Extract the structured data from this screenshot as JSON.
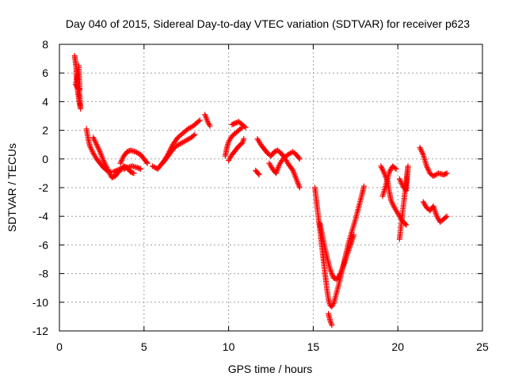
{
  "chart_data": {
    "type": "scatter",
    "title": "Day 040 of 2015, Sidereal Day-to-day VTEC variation (SDTVAR) for receiver p623",
    "xlabel": "GPS time / hours",
    "ylabel": "SDTVAR / TECUs",
    "xlim": [
      0,
      25
    ],
    "ylim": [
      -12,
      8
    ],
    "xticks": [
      0,
      5,
      10,
      15,
      20,
      25
    ],
    "yticks": [
      -12,
      -10,
      -8,
      -6,
      -4,
      -2,
      0,
      2,
      4,
      6,
      8
    ],
    "grid": true,
    "marker": "+",
    "color": "#ff0000",
    "series": [
      {
        "segments": [
          [
            [
              0.9,
              7.2
            ],
            [
              0.95,
              6.8
            ],
            [
              1.0,
              6.3
            ],
            [
              1.0,
              5.8
            ],
            [
              1.05,
              5.5
            ],
            [
              1.05,
              5.0
            ],
            [
              1.1,
              4.6
            ],
            [
              1.15,
              4.2
            ],
            [
              1.2,
              3.8
            ],
            [
              1.25,
              3.5
            ],
            [
              1.1,
              6.0
            ],
            [
              0.95,
              5.2
            ],
            [
              1.2,
              4.8
            ],
            [
              1.15,
              6.5
            ]
          ],
          [
            [
              1.6,
              2.1
            ],
            [
              1.7,
              1.4
            ],
            [
              1.8,
              0.9
            ],
            [
              2.0,
              0.4
            ],
            [
              2.2,
              0.0
            ],
            [
              2.4,
              -0.3
            ],
            [
              2.6,
              -0.6
            ],
            [
              2.8,
              -0.8
            ],
            [
              3.0,
              -0.9
            ],
            [
              3.2,
              -0.9
            ],
            [
              3.4,
              -0.8
            ],
            [
              3.6,
              -0.7
            ],
            [
              3.8,
              -0.7
            ],
            [
              4.0,
              -0.6
            ],
            [
              4.3,
              -0.5
            ],
            [
              4.6,
              -0.6
            ],
            [
              4.8,
              -0.7
            ]
          ],
          [
            [
              2.0,
              1.5
            ],
            [
              2.2,
              1.0
            ],
            [
              2.4,
              0.5
            ],
            [
              2.6,
              -0.1
            ],
            [
              2.8,
              -0.6
            ],
            [
              3.0,
              -1.1
            ],
            [
              3.1,
              -1.3
            ],
            [
              3.3,
              -1.2
            ],
            [
              3.5,
              -0.9
            ],
            [
              3.8,
              -0.5
            ],
            [
              4.0,
              -0.6
            ],
            [
              4.2,
              -0.9
            ],
            [
              4.4,
              -1.0
            ]
          ],
          [
            [
              3.6,
              -0.3
            ],
            [
              3.8,
              0.2
            ],
            [
              4.0,
              0.5
            ],
            [
              4.2,
              0.6
            ],
            [
              4.5,
              0.5
            ],
            [
              4.8,
              0.3
            ],
            [
              5.0,
              0.0
            ],
            [
              5.2,
              -0.3
            ]
          ],
          [
            [
              5.5,
              -0.5
            ],
            [
              5.8,
              -0.7
            ],
            [
              6.0,
              -0.4
            ],
            [
              6.3,
              0.0
            ],
            [
              6.6,
              0.5
            ],
            [
              6.9,
              0.9
            ],
            [
              7.2,
              1.1
            ],
            [
              7.5,
              1.3
            ],
            [
              7.8,
              1.5
            ],
            [
              8.0,
              1.7
            ]
          ],
          [
            [
              6.1,
              -0.3
            ],
            [
              6.4,
              0.3
            ],
            [
              6.7,
              1.0
            ],
            [
              7.0,
              1.5
            ],
            [
              7.3,
              1.8
            ],
            [
              7.6,
              2.1
            ],
            [
              7.9,
              2.3
            ],
            [
              8.1,
              2.5
            ],
            [
              8.3,
              2.7
            ]
          ],
          [
            [
              8.6,
              3.1
            ],
            [
              8.7,
              2.8
            ],
            [
              8.8,
              2.5
            ],
            [
              8.9,
              2.3
            ]
          ],
          [
            [
              9.8,
              0.2
            ],
            [
              9.9,
              0.8
            ],
            [
              10.0,
              1.2
            ],
            [
              10.2,
              1.6
            ],
            [
              10.4,
              1.8
            ],
            [
              10.6,
              2.0
            ],
            [
              10.8,
              2.2
            ]
          ],
          [
            [
              10.0,
              -0.1
            ],
            [
              10.2,
              0.3
            ],
            [
              10.4,
              0.6
            ],
            [
              10.6,
              0.9
            ],
            [
              10.8,
              1.1
            ],
            [
              10.9,
              1.4
            ]
          ],
          [
            [
              10.2,
              2.4
            ],
            [
              10.4,
              2.5
            ],
            [
              10.6,
              2.6
            ],
            [
              10.8,
              2.4
            ],
            [
              11.0,
              2.2
            ]
          ],
          [
            [
              11.6,
              -0.8
            ],
            [
              11.8,
              -1.1
            ]
          ],
          [
            [
              11.7,
              1.4
            ],
            [
              11.9,
              1.0
            ],
            [
              12.1,
              0.7
            ],
            [
              12.3,
              0.4
            ],
            [
              12.5,
              0.2
            ],
            [
              12.7,
              0.5
            ],
            [
              12.9,
              0.6
            ],
            [
              13.1,
              0.4
            ],
            [
              13.3,
              0.1
            ],
            [
              13.5,
              -0.3
            ],
            [
              13.8,
              -0.8
            ],
            [
              14.0,
              -1.4
            ],
            [
              14.2,
              -2.0
            ]
          ],
          [
            [
              12.4,
              -0.3
            ],
            [
              12.6,
              -0.7
            ],
            [
              12.8,
              -1.0
            ],
            [
              13.0,
              -0.4
            ],
            [
              13.2,
              0.0
            ],
            [
              13.5,
              0.3
            ],
            [
              13.8,
              0.5
            ],
            [
              14.0,
              0.3
            ],
            [
              14.2,
              0.0
            ]
          ],
          [
            [
              15.1,
              -2.0
            ],
            [
              15.2,
              -3.0
            ],
            [
              15.3,
              -4.0
            ],
            [
              15.4,
              -5.0
            ],
            [
              15.5,
              -6.0
            ],
            [
              15.6,
              -7.0
            ],
            [
              15.7,
              -8.0
            ],
            [
              15.8,
              -9.0
            ],
            [
              15.9,
              -9.8
            ],
            [
              16.0,
              -10.2
            ],
            [
              16.1,
              -10.3
            ],
            [
              16.2,
              -10.1
            ],
            [
              16.3,
              -9.7
            ],
            [
              16.5,
              -8.8
            ],
            [
              16.7,
              -7.8
            ],
            [
              16.9,
              -6.8
            ],
            [
              17.1,
              -5.8
            ],
            [
              17.3,
              -5.0
            ],
            [
              17.5,
              -4.2
            ],
            [
              17.7,
              -3.3
            ],
            [
              17.9,
              -2.4
            ],
            [
              18.0,
              -1.9
            ]
          ],
          [
            [
              15.4,
              -4.5
            ],
            [
              15.6,
              -5.7
            ],
            [
              15.8,
              -6.8
            ],
            [
              16.0,
              -7.7
            ],
            [
              16.2,
              -8.3
            ],
            [
              16.4,
              -8.4
            ],
            [
              16.6,
              -8.0
            ],
            [
              16.8,
              -7.4
            ],
            [
              17.0,
              -6.7
            ],
            [
              17.2,
              -6.0
            ],
            [
              17.4,
              -5.3
            ]
          ],
          [
            [
              15.9,
              -10.8
            ],
            [
              16.0,
              -11.3
            ],
            [
              16.1,
              -11.6
            ]
          ],
          [
            [
              19.0,
              -0.5
            ],
            [
              19.2,
              -1.0
            ],
            [
              19.4,
              -1.6
            ],
            [
              19.5,
              -2.3
            ],
            [
              19.6,
              -2.9
            ],
            [
              19.8,
              -3.4
            ],
            [
              20.0,
              -3.8
            ],
            [
              20.2,
              -4.2
            ],
            [
              20.4,
              -4.5
            ],
            [
              20.5,
              -4.6
            ]
          ],
          [
            [
              19.1,
              -2.6
            ],
            [
              19.3,
              -1.8
            ],
            [
              19.5,
              -0.9
            ],
            [
              19.7,
              -0.5
            ],
            [
              19.9,
              -0.7
            ]
          ],
          [
            [
              20.1,
              -1.4
            ],
            [
              20.3,
              -1.9
            ],
            [
              20.5,
              -2.2
            ],
            [
              20.6,
              -0.5
            ],
            [
              20.1,
              -5.6
            ]
          ],
          [
            [
              21.3,
              0.8
            ],
            [
              21.5,
              0.3
            ],
            [
              21.7,
              -0.5
            ],
            [
              21.9,
              -1.0
            ],
            [
              22.1,
              -1.2
            ],
            [
              22.4,
              -1.0
            ],
            [
              22.7,
              -1.1
            ],
            [
              22.9,
              -1.0
            ]
          ],
          [
            [
              21.5,
              -3.0
            ],
            [
              21.7,
              -3.4
            ],
            [
              21.9,
              -3.6
            ],
            [
              22.1,
              -3.3
            ],
            [
              22.3,
              -4.0
            ],
            [
              22.5,
              -4.4
            ],
            [
              22.7,
              -4.2
            ],
            [
              22.9,
              -4.0
            ]
          ]
        ]
      }
    ]
  }
}
